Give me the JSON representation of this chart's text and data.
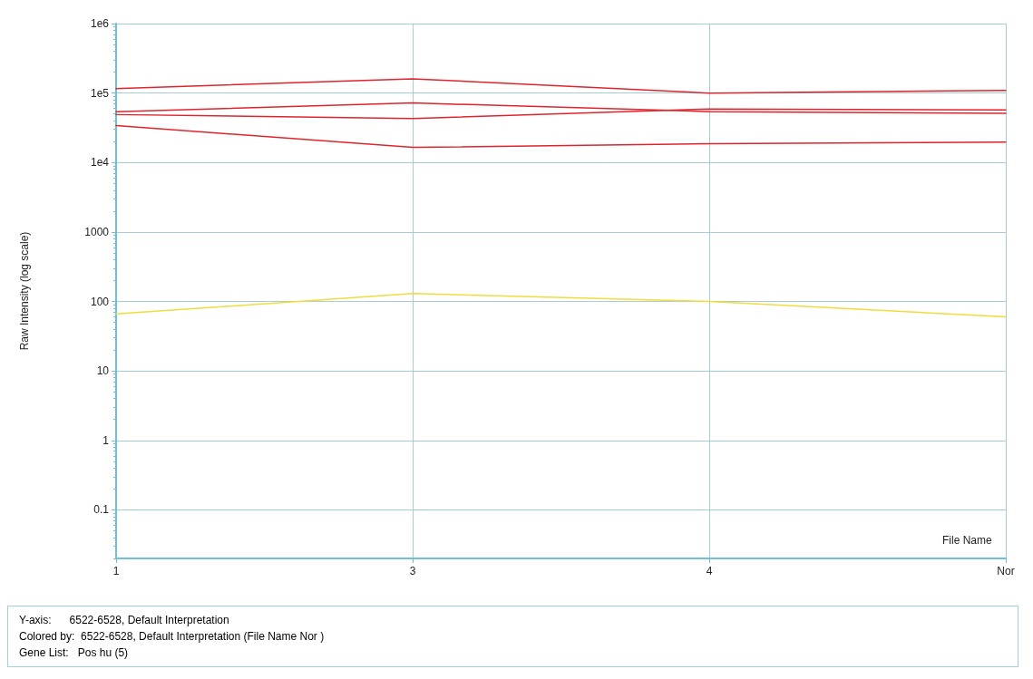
{
  "chart_data": {
    "type": "line",
    "xlabel": "File Name",
    "ylabel": "Raw Intensity (log scale)",
    "categories": [
      "1",
      "3",
      "4",
      "Nor"
    ],
    "series": [
      {
        "color": "#e0242c",
        "values": [
          116000,
          160000,
          100000,
          109000
        ]
      },
      {
        "color": "#e0242c",
        "values": [
          54000,
          72000,
          54000,
          51000
        ]
      },
      {
        "color": "#e0242c",
        "values": [
          49000,
          43000,
          59000,
          57000
        ]
      },
      {
        "color": "#e0242c",
        "values": [
          34000,
          16500,
          18600,
          19700
        ]
      },
      {
        "color": "#f0dc3c",
        "values": [
          66,
          130,
          100,
          60
        ]
      }
    ],
    "log": "y",
    "ylim": [
      0.02,
      1000000
    ],
    "yticks": [
      {
        "value": 1000000,
        "label": "1e6"
      },
      {
        "value": 100000,
        "label": "1e5"
      },
      {
        "value": 10000,
        "label": "1e4"
      },
      1000,
      100,
      10,
      1,
      0.1
    ],
    "grid": true,
    "marker": "none",
    "line_style": "solid",
    "annotations": [
      "Y-axis:      6522-6528, Default Interpretation",
      "Colored by:  6522-6528, Default Interpretation (File Name Nor )",
      "Gene List:   Pos hu (5)"
    ]
  }
}
